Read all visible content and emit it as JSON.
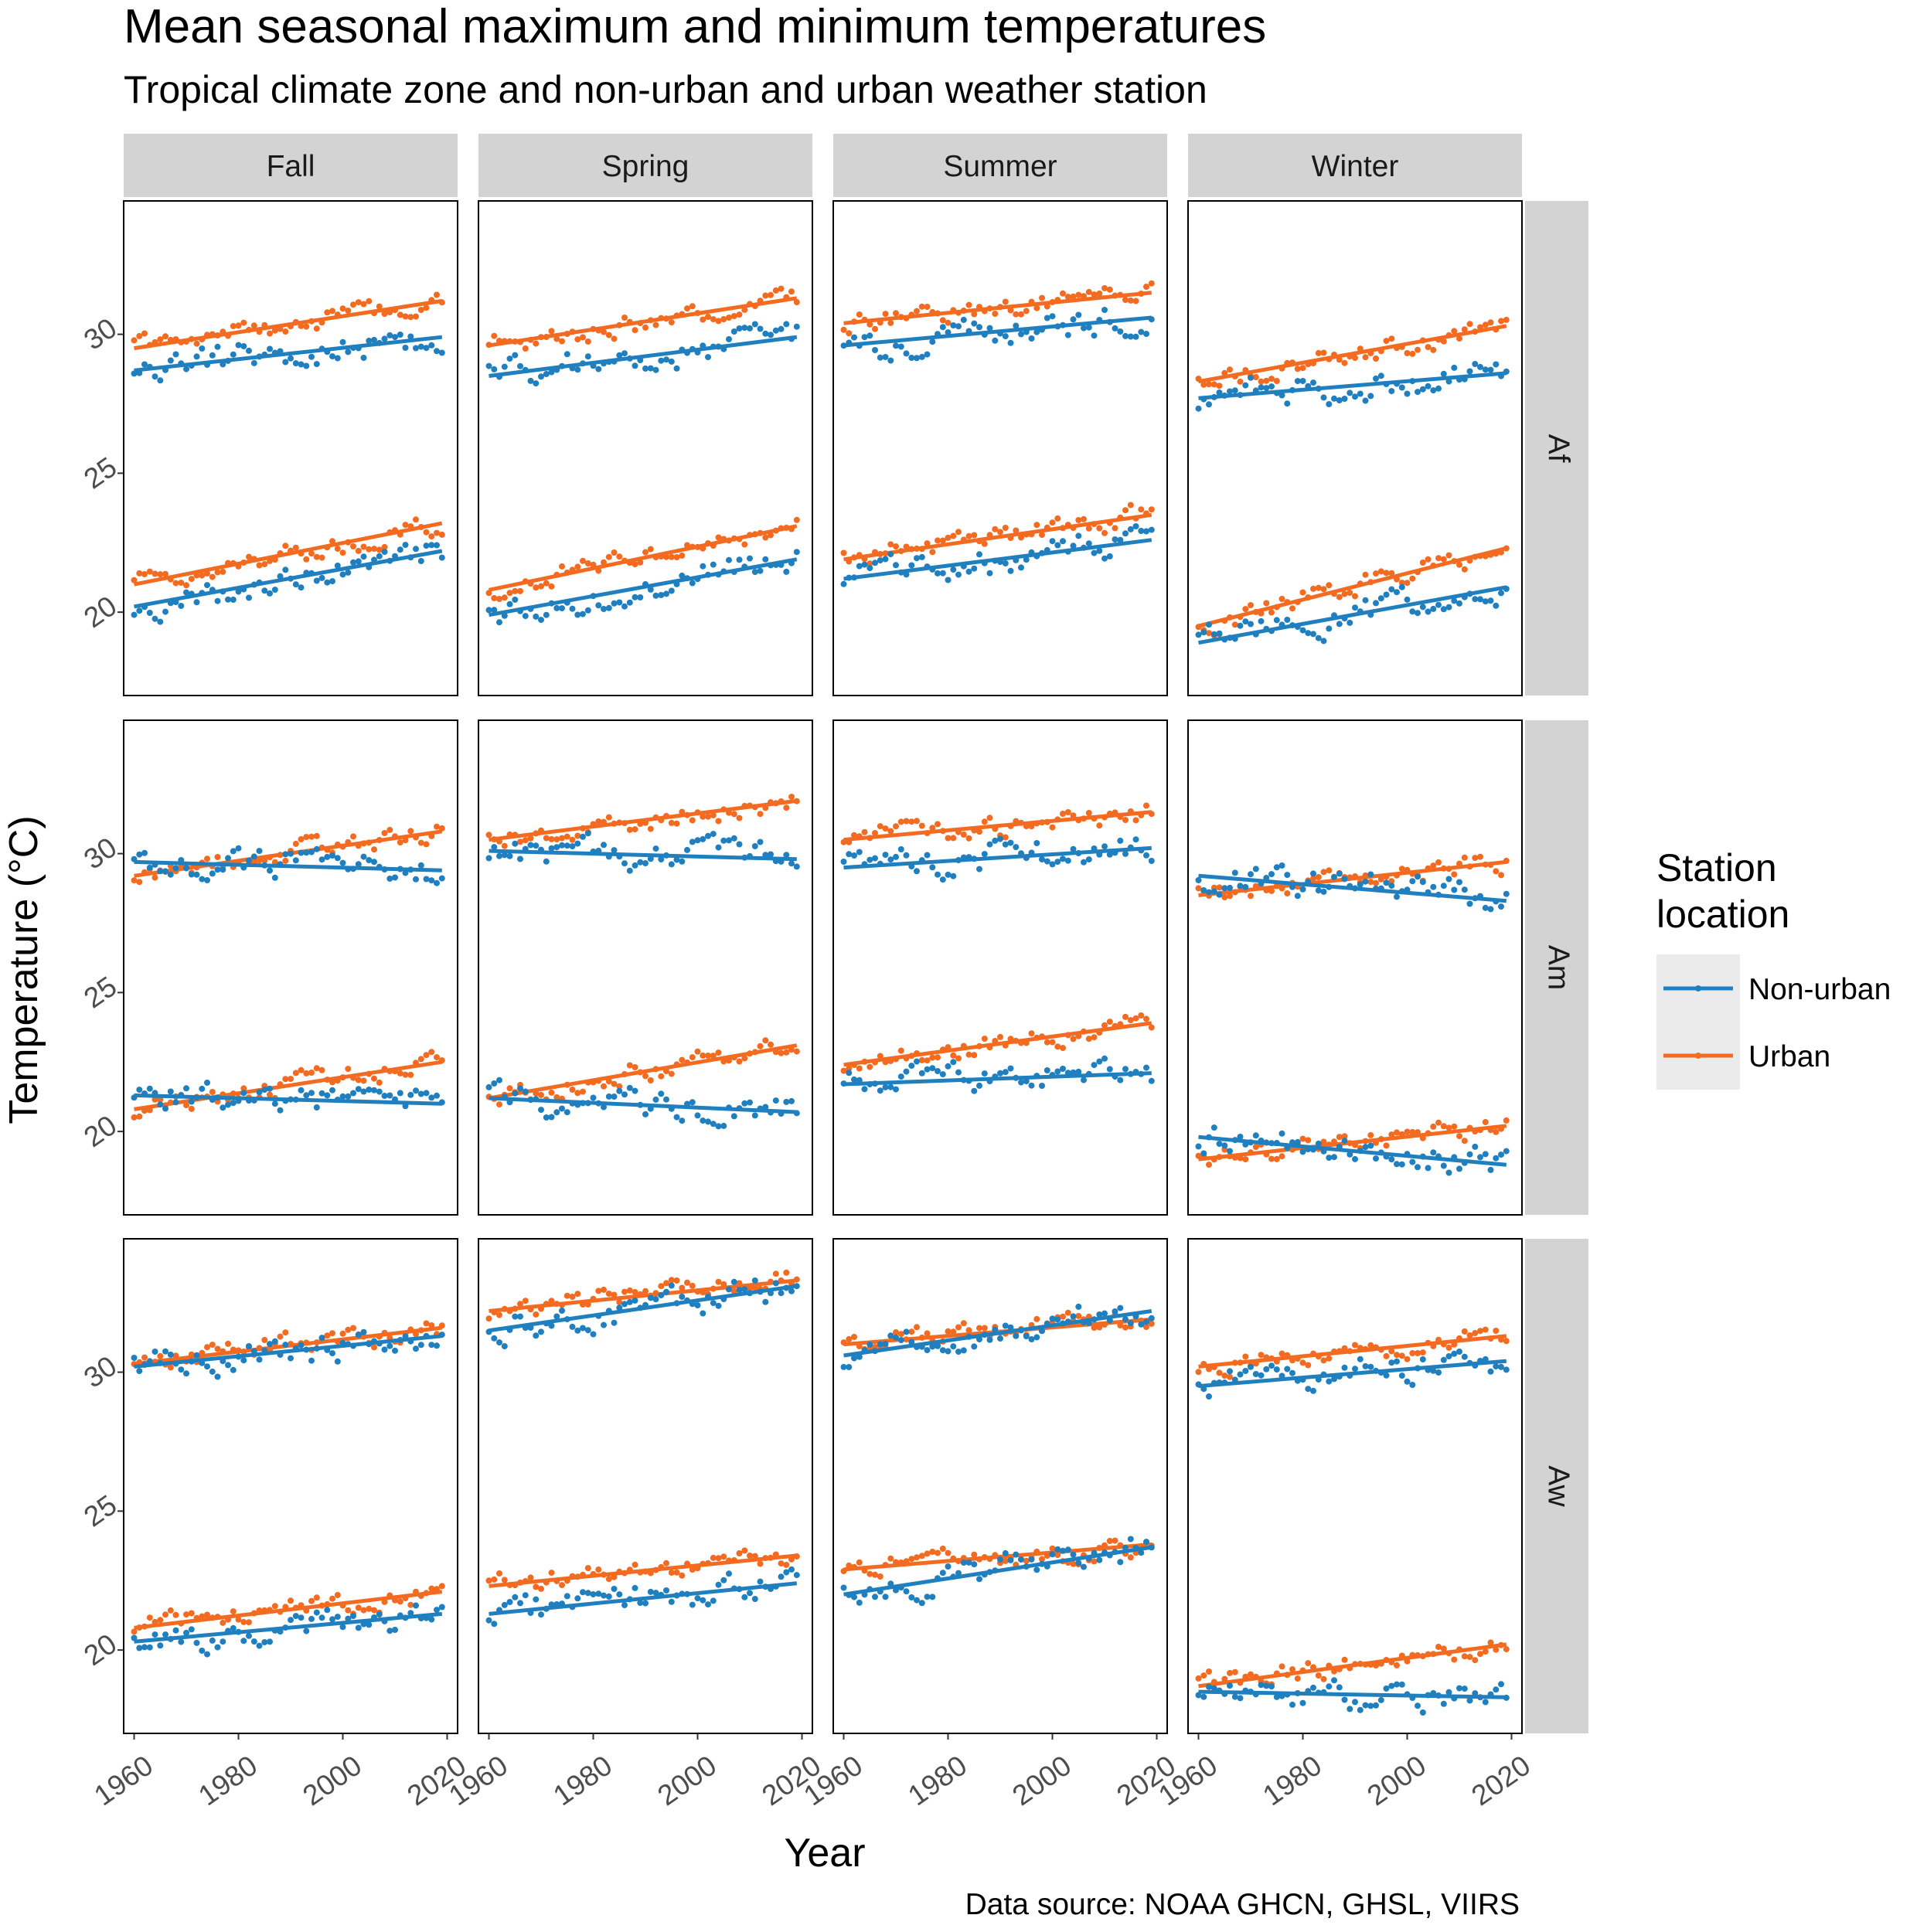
{
  "title": "Mean seasonal maximum and minimum temperatures",
  "subtitle": "Tropical climate zone and non-urban and urban weather station",
  "caption": "Data source: NOAA GHCN, GHSL, VIIRS",
  "colors": {
    "non_urban": "#1f7fbf",
    "urban": "#f26b21",
    "strip": "#d3d3d3",
    "legend_bg": "#ebebeb"
  },
  "chart_data": {
    "type": "scatter",
    "facet_cols": [
      "Fall",
      "Spring",
      "Summer",
      "Winter"
    ],
    "facet_rows": [
      "Af",
      "Am",
      "Aw"
    ],
    "xlabel": "Year",
    "ylabel": "Temperature (°C)",
    "xlim": [
      1958,
      2022
    ],
    "ylim": [
      17,
      34.8
    ],
    "x_ticks": [
      1960,
      1980,
      2000,
      2020
    ],
    "y_ticks": [
      20,
      25,
      30
    ],
    "year_range": [
      1960,
      2019
    ],
    "legend": {
      "title_line1": "Station",
      "title_line2": "location",
      "entries": [
        "Non-urban",
        "Urban"
      ],
      "position": "right"
    },
    "trend_lines": [
      {
        "row": "Af",
        "col": "Fall",
        "series": "Urban",
        "kind": "max",
        "start": 29.5,
        "end": 31.2
      },
      {
        "row": "Af",
        "col": "Fall",
        "series": "Non-urban",
        "kind": "max",
        "start": 28.7,
        "end": 29.9
      },
      {
        "row": "Af",
        "col": "Fall",
        "series": "Urban",
        "kind": "min",
        "start": 21.0,
        "end": 23.2
      },
      {
        "row": "Af",
        "col": "Fall",
        "series": "Non-urban",
        "kind": "min",
        "start": 20.2,
        "end": 22.2
      },
      {
        "row": "Af",
        "col": "Spring",
        "series": "Urban",
        "kind": "max",
        "start": 29.6,
        "end": 31.3
      },
      {
        "row": "Af",
        "col": "Spring",
        "series": "Non-urban",
        "kind": "max",
        "start": 28.5,
        "end": 29.9
      },
      {
        "row": "Af",
        "col": "Spring",
        "series": "Urban",
        "kind": "min",
        "start": 20.8,
        "end": 23.1
      },
      {
        "row": "Af",
        "col": "Spring",
        "series": "Non-urban",
        "kind": "min",
        "start": 19.9,
        "end": 21.9
      },
      {
        "row": "Af",
        "col": "Summer",
        "series": "Urban",
        "kind": "max",
        "start": 30.4,
        "end": 31.5
      },
      {
        "row": "Af",
        "col": "Summer",
        "series": "Non-urban",
        "kind": "max",
        "start": 29.6,
        "end": 30.6
      },
      {
        "row": "Af",
        "col": "Summer",
        "series": "Urban",
        "kind": "min",
        "start": 21.9,
        "end": 23.5
      },
      {
        "row": "Af",
        "col": "Summer",
        "series": "Non-urban",
        "kind": "min",
        "start": 21.2,
        "end": 22.6
      },
      {
        "row": "Af",
        "col": "Winter",
        "series": "Urban",
        "kind": "max",
        "start": 28.3,
        "end": 30.3
      },
      {
        "row": "Af",
        "col": "Winter",
        "series": "Non-urban",
        "kind": "max",
        "start": 27.7,
        "end": 28.6
      },
      {
        "row": "Af",
        "col": "Winter",
        "series": "Urban",
        "kind": "min",
        "start": 19.5,
        "end": 22.3
      },
      {
        "row": "Af",
        "col": "Winter",
        "series": "Non-urban",
        "kind": "min",
        "start": 18.9,
        "end": 20.9
      },
      {
        "row": "Am",
        "col": "Fall",
        "series": "Urban",
        "kind": "max",
        "start": 29.2,
        "end": 30.8
      },
      {
        "row": "Am",
        "col": "Fall",
        "series": "Non-urban",
        "kind": "max",
        "start": 29.7,
        "end": 29.4
      },
      {
        "row": "Am",
        "col": "Fall",
        "series": "Urban",
        "kind": "min",
        "start": 20.8,
        "end": 22.5
      },
      {
        "row": "Am",
        "col": "Fall",
        "series": "Non-urban",
        "kind": "min",
        "start": 21.3,
        "end": 21.0
      },
      {
        "row": "Am",
        "col": "Spring",
        "series": "Urban",
        "kind": "max",
        "start": 30.5,
        "end": 31.9
      },
      {
        "row": "Am",
        "col": "Spring",
        "series": "Non-urban",
        "kind": "max",
        "start": 30.1,
        "end": 29.8
      },
      {
        "row": "Am",
        "col": "Spring",
        "series": "Urban",
        "kind": "min",
        "start": 21.2,
        "end": 23.1
      },
      {
        "row": "Am",
        "col": "Spring",
        "series": "Non-urban",
        "kind": "min",
        "start": 21.2,
        "end": 20.7
      },
      {
        "row": "Am",
        "col": "Summer",
        "series": "Urban",
        "kind": "max",
        "start": 30.5,
        "end": 31.5
      },
      {
        "row": "Am",
        "col": "Summer",
        "series": "Non-urban",
        "kind": "max",
        "start": 29.5,
        "end": 30.2
      },
      {
        "row": "Am",
        "col": "Summer",
        "series": "Urban",
        "kind": "min",
        "start": 22.4,
        "end": 23.9
      },
      {
        "row": "Am",
        "col": "Summer",
        "series": "Non-urban",
        "kind": "min",
        "start": 21.7,
        "end": 22.1
      },
      {
        "row": "Am",
        "col": "Winter",
        "series": "Urban",
        "kind": "max",
        "start": 28.5,
        "end": 29.7
      },
      {
        "row": "Am",
        "col": "Winter",
        "series": "Non-urban",
        "kind": "max",
        "start": 29.2,
        "end": 28.3
      },
      {
        "row": "Am",
        "col": "Winter",
        "series": "Urban",
        "kind": "min",
        "start": 19.0,
        "end": 20.2
      },
      {
        "row": "Am",
        "col": "Winter",
        "series": "Non-urban",
        "kind": "min",
        "start": 19.8,
        "end": 18.8
      },
      {
        "row": "Aw",
        "col": "Fall",
        "series": "Urban",
        "kind": "max",
        "start": 30.3,
        "end": 31.6
      },
      {
        "row": "Aw",
        "col": "Fall",
        "series": "Non-urban",
        "kind": "max",
        "start": 30.2,
        "end": 31.3
      },
      {
        "row": "Aw",
        "col": "Fall",
        "series": "Urban",
        "kind": "min",
        "start": 20.8,
        "end": 22.1
      },
      {
        "row": "Aw",
        "col": "Fall",
        "series": "Non-urban",
        "kind": "min",
        "start": 20.3,
        "end": 21.3
      },
      {
        "row": "Aw",
        "col": "Spring",
        "series": "Urban",
        "kind": "max",
        "start": 32.2,
        "end": 33.3
      },
      {
        "row": "Aw",
        "col": "Spring",
        "series": "Non-urban",
        "kind": "max",
        "start": 31.5,
        "end": 33.1
      },
      {
        "row": "Aw",
        "col": "Spring",
        "series": "Urban",
        "kind": "min",
        "start": 22.3,
        "end": 23.4
      },
      {
        "row": "Aw",
        "col": "Spring",
        "series": "Non-urban",
        "kind": "min",
        "start": 21.3,
        "end": 22.4
      },
      {
        "row": "Aw",
        "col": "Summer",
        "series": "Urban",
        "kind": "max",
        "start": 31.0,
        "end": 31.9
      },
      {
        "row": "Aw",
        "col": "Summer",
        "series": "Non-urban",
        "kind": "max",
        "start": 30.6,
        "end": 32.2
      },
      {
        "row": "Aw",
        "col": "Summer",
        "series": "Urban",
        "kind": "min",
        "start": 22.9,
        "end": 23.8
      },
      {
        "row": "Aw",
        "col": "Summer",
        "series": "Non-urban",
        "kind": "min",
        "start": 22.0,
        "end": 23.7
      },
      {
        "row": "Aw",
        "col": "Winter",
        "series": "Urban",
        "kind": "max",
        "start": 30.2,
        "end": 31.3
      },
      {
        "row": "Aw",
        "col": "Winter",
        "series": "Non-urban",
        "kind": "max",
        "start": 29.5,
        "end": 30.4
      },
      {
        "row": "Aw",
        "col": "Winter",
        "series": "Urban",
        "kind": "min",
        "start": 18.7,
        "end": 20.2
      },
      {
        "row": "Aw",
        "col": "Winter",
        "series": "Non-urban",
        "kind": "min",
        "start": 18.5,
        "end": 18.3
      }
    ]
  }
}
